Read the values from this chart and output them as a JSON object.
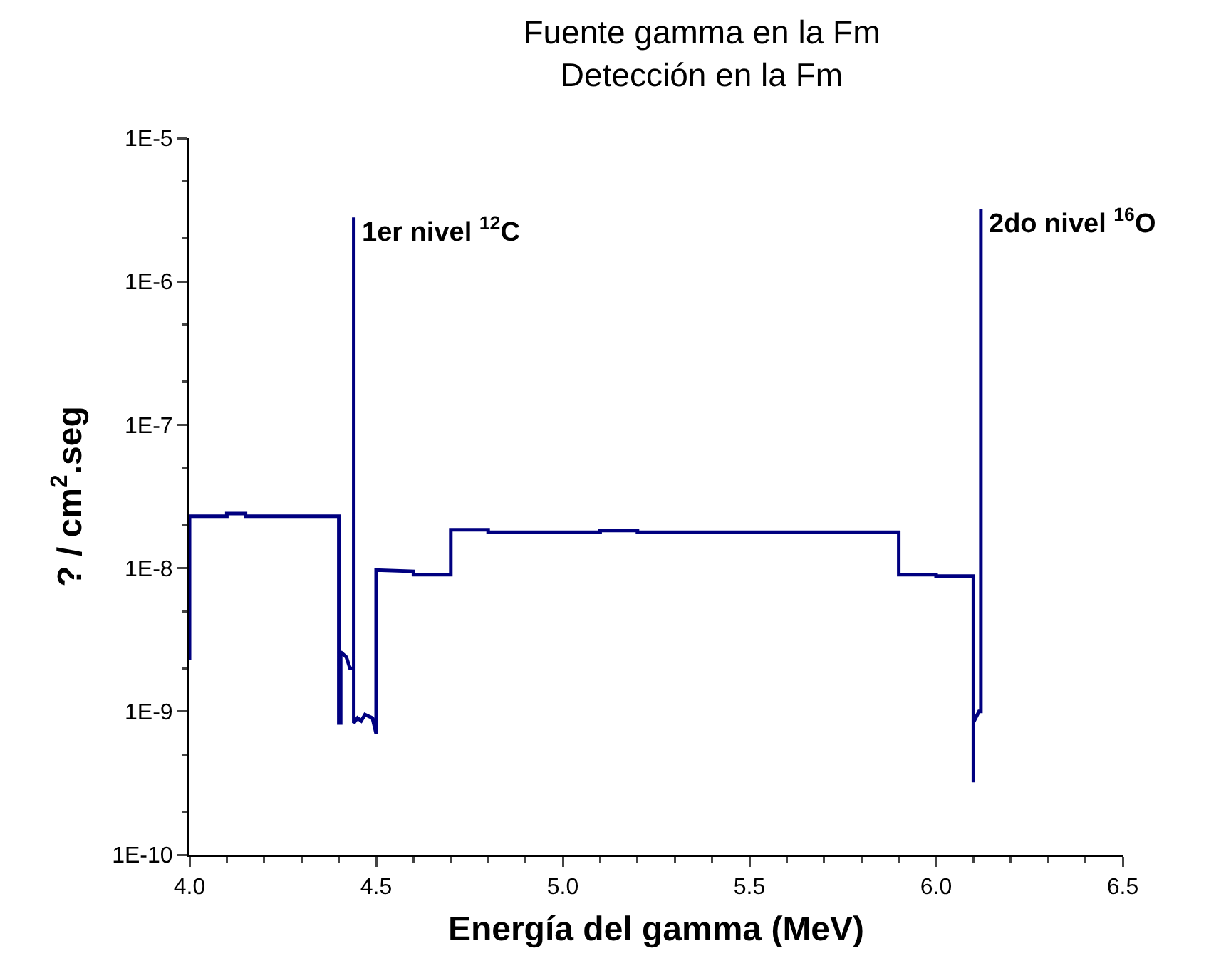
{
  "chart_data": {
    "type": "line",
    "title": "Fuente gamma en la Fm\nDetección en la Fm",
    "xlabel": "Energía del gamma (MeV)",
    "ylabel": "? / cm$^{2}$.seg",
    "log": "y",
    "grid": false,
    "marker": "none",
    "line_style": "solid",
    "xlim": [
      4.0,
      6.5
    ],
    "xticks": [
      {
        "value": 4.0,
        "label": "4.0"
      },
      {
        "value": 4.5,
        "label": "4.5"
      },
      {
        "value": 5.0,
        "label": "5.0"
      },
      {
        "value": 5.5,
        "label": "5.5"
      },
      {
        "value": 6.0,
        "label": "6.0"
      },
      {
        "value": 6.5,
        "label": "6.5"
      }
    ],
    "ylim": [
      1e-10,
      1e-05
    ],
    "yticks": [
      {
        "value": 1e-10,
        "label": "1E-10"
      },
      {
        "value": 1e-09,
        "label": "1E-9"
      },
      {
        "value": 1e-08,
        "label": "1E-8"
      },
      {
        "value": 1e-07,
        "label": "1E-7"
      },
      {
        "value": 1e-06,
        "label": "1E-6"
      },
      {
        "value": 1e-05,
        "label": "1E-5"
      }
    ],
    "annotations": [
      {
        "text": "1er nivel $^{12}$C",
        "x": 4.44,
        "y": 2.8e-06
      },
      {
        "text": "2do nivel $^{16}$O",
        "x": 6.12,
        "y": 3.2e-06
      }
    ],
    "series": [
      {
        "color": "#000080",
        "x": [
          4.0,
          4.0,
          4.1,
          4.1,
          4.15,
          4.15,
          4.4,
          4.4,
          4.405,
          4.405,
          4.42,
          4.43,
          4.44,
          4.44,
          4.44,
          4.45,
          4.46,
          4.47,
          4.49,
          4.5,
          4.5,
          4.6,
          4.6,
          4.7,
          4.7,
          4.8,
          4.8,
          5.1,
          5.1,
          5.2,
          5.2,
          5.9,
          5.9,
          6.0,
          6.0,
          6.1,
          6.1,
          6.1,
          6.115,
          6.12,
          6.12
        ],
        "values": [
          2.3e-09,
          2.3e-08,
          2.3e-08,
          2.4e-08,
          2.4e-08,
          2.3e-08,
          2.3e-08,
          8.3e-10,
          8.3e-10,
          2.6e-09,
          2.4e-09,
          2e-09,
          2e-09,
          2.8e-06,
          8.3e-10,
          9e-10,
          8.6e-10,
          9.5e-10,
          9e-10,
          7e-10,
          9.7e-09,
          9.5e-09,
          9e-09,
          9e-09,
          1.85e-08,
          1.85e-08,
          1.78e-08,
          1.78e-08,
          1.83e-08,
          1.83e-08,
          1.78e-08,
          1.78e-08,
          9e-09,
          9e-09,
          8.8e-09,
          8.8e-09,
          3.2e-10,
          8.4e-10,
          1e-09,
          1e-09,
          3.2e-06
        ]
      }
    ]
  }
}
